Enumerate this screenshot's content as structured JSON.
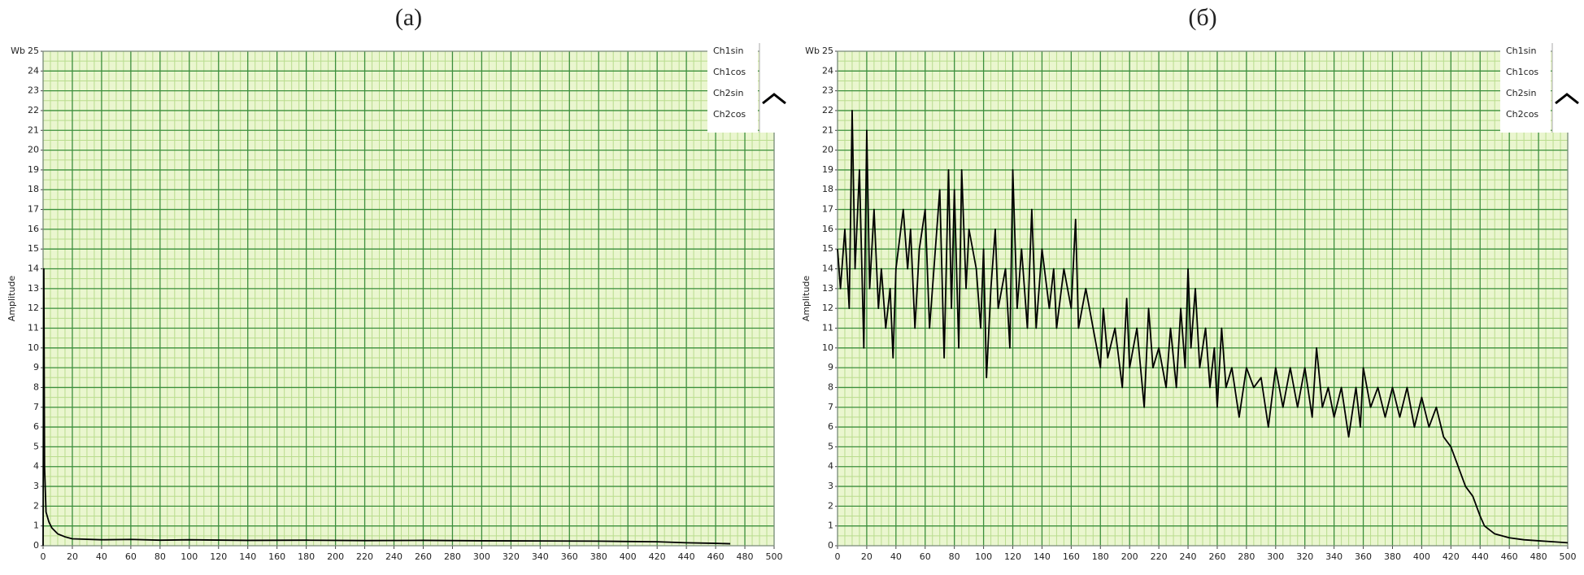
{
  "chart_data": [
    {
      "type": "line",
      "title": "(a)",
      "y_label": "Amplitude",
      "y_unit": "Wb",
      "legend": [
        "Ch1sin",
        "Ch1cos",
        "Ch2sin",
        "Ch2cos"
      ],
      "color": "#000000",
      "grid": true,
      "xlim": [
        0,
        500
      ],
      "ylim": [
        0,
        25
      ],
      "xticks": [
        0,
        20,
        40,
        60,
        80,
        100,
        120,
        140,
        160,
        180,
        200,
        220,
        240,
        260,
        280,
        300,
        320,
        340,
        360,
        380,
        400,
        420,
        440,
        460,
        480,
        500
      ],
      "yticks": [
        0,
        1,
        2,
        3,
        4,
        5,
        6,
        7,
        8,
        9,
        10,
        11,
        12,
        13,
        14,
        15,
        16,
        17,
        18,
        19,
        20,
        21,
        22,
        23,
        24,
        25
      ],
      "x": [
        0,
        0.5,
        1,
        2,
        4,
        6,
        10,
        15,
        20,
        40,
        60,
        80,
        100,
        140,
        180,
        220,
        260,
        300,
        340,
        380,
        420,
        440,
        460,
        470
      ],
      "values": [
        0,
        14,
        4,
        1.7,
        1.2,
        0.9,
        0.6,
        0.45,
        0.35,
        0.3,
        0.32,
        0.28,
        0.3,
        0.27,
        0.28,
        0.26,
        0.27,
        0.25,
        0.24,
        0.23,
        0.2,
        0.15,
        0.12,
        0.1
      ]
    },
    {
      "type": "line",
      "title": "(б)",
      "y_label": "Amplitude",
      "y_unit": "Wb",
      "legend": [
        "Ch1sin",
        "Ch1cos",
        "Ch2sin",
        "Ch2cos"
      ],
      "color": "#000000",
      "grid": true,
      "xlim": [
        0,
        500
      ],
      "ylim": [
        0,
        25
      ],
      "xticks": [
        0,
        20,
        40,
        60,
        80,
        100,
        120,
        140,
        160,
        180,
        200,
        220,
        240,
        260,
        280,
        300,
        320,
        340,
        360,
        380,
        400,
        420,
        440,
        460,
        480,
        500
      ],
      "yticks": [
        0,
        1,
        2,
        3,
        4,
        5,
        6,
        7,
        8,
        9,
        10,
        11,
        12,
        13,
        14,
        15,
        16,
        17,
        18,
        19,
        20,
        21,
        22,
        23,
        24,
        25
      ],
      "x": [
        0,
        2,
        5,
        8,
        10,
        12,
        15,
        18,
        20,
        22,
        25,
        28,
        30,
        33,
        36,
        38,
        40,
        45,
        48,
        50,
        53,
        56,
        60,
        63,
        66,
        70,
        73,
        76,
        78,
        80,
        83,
        85,
        88,
        90,
        95,
        98,
        100,
        102,
        105,
        108,
        110,
        115,
        118,
        120,
        123,
        126,
        130,
        133,
        136,
        140,
        145,
        148,
        150,
        155,
        160,
        163,
        165,
        170,
        175,
        180,
        182,
        185,
        190,
        195,
        198,
        200,
        205,
        210,
        213,
        216,
        220,
        225,
        228,
        232,
        235,
        238,
        240,
        242,
        245,
        248,
        252,
        255,
        258,
        260,
        263,
        266,
        270,
        275,
        280,
        285,
        290,
        295,
        300,
        305,
        310,
        315,
        320,
        325,
        328,
        332,
        336,
        340,
        345,
        350,
        355,
        358,
        360,
        365,
        370,
        375,
        380,
        385,
        390,
        395,
        400,
        405,
        410,
        415,
        420,
        425,
        430,
        435,
        440,
        443,
        450,
        460,
        470,
        480,
        490,
        500
      ],
      "values": [
        15,
        13,
        16,
        12,
        22,
        14,
        19,
        10,
        21,
        13,
        17,
        12,
        14,
        11,
        13,
        9.5,
        14,
        17,
        14,
        16,
        11,
        15,
        17,
        11,
        14,
        18,
        9.5,
        19,
        12,
        18,
        10,
        19,
        13,
        16,
        14,
        11,
        15,
        8.5,
        13,
        16,
        12,
        14,
        10,
        19,
        12,
        15,
        11,
        17,
        11,
        15,
        12,
        14,
        11,
        14,
        12,
        16.5,
        11,
        13,
        11,
        9,
        12,
        9.5,
        11,
        8,
        12.5,
        9,
        11,
        7,
        12,
        9,
        10,
        8,
        11,
        8,
        12,
        9,
        14,
        10,
        13,
        9,
        11,
        8,
        10,
        7,
        11,
        8,
        9,
        6.5,
        9,
        8,
        8.5,
        6,
        9,
        7,
        9,
        7,
        9,
        6.5,
        10,
        7,
        8,
        6.5,
        8,
        5.5,
        8,
        6,
        9,
        7,
        8,
        6.5,
        8,
        6.5,
        8,
        6,
        7.5,
        6,
        7,
        5.5,
        5,
        4,
        3,
        2.5,
        1.5,
        1,
        0.6,
        0.4,
        0.3,
        0.25,
        0.2,
        0.15
      ]
    }
  ]
}
